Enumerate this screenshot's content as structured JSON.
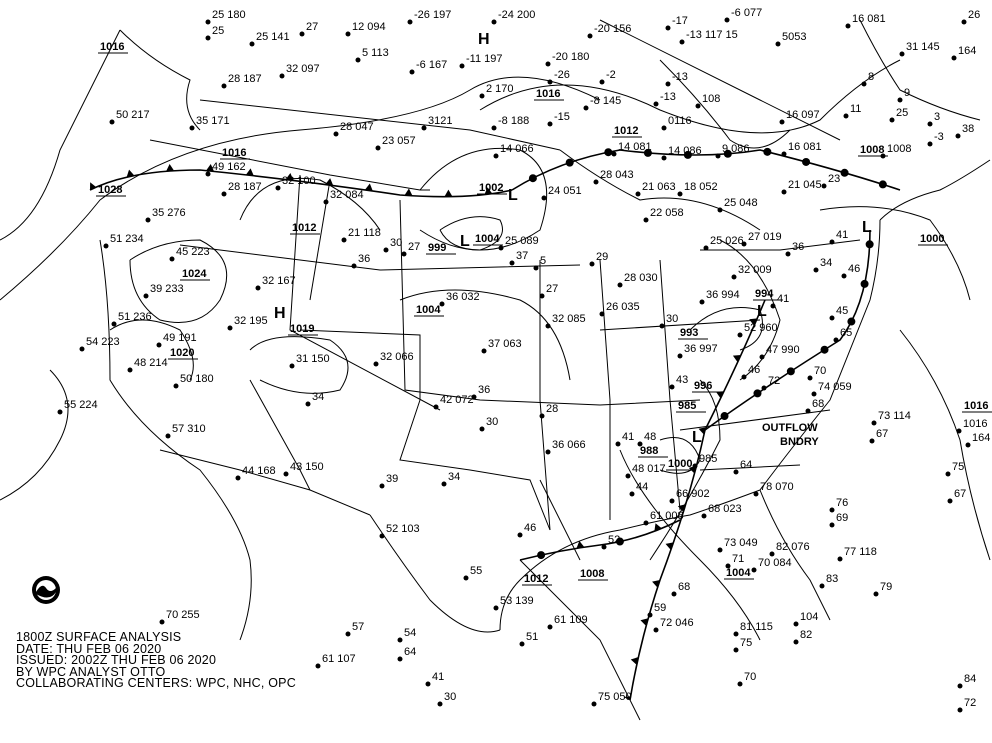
{
  "caption": {
    "line1": "1800Z SURFACE ANALYSIS",
    "line2": "DATE: THU FEB 06 2020",
    "line3": "ISSUED: 2002Z THU FEB 06 2020",
    "line4": "BY WPC ANALYST OTTO",
    "line5": "COLLABORATING CENTERS: WPC, NHC, OPC"
  },
  "logo": "NOAA",
  "pressure_centers": [
    {
      "type": "H"
    },
    {
      "type": "H"
    },
    {
      "type": "L"
    },
    {
      "type": "L"
    },
    {
      "type": "L"
    },
    {
      "type": "L"
    },
    {
      "type": "L"
    }
  ],
  "isobar_labels": [
    "1016",
    "1016",
    "1028",
    "1024",
    "1020",
    "1012",
    "1019",
    "1002",
    "999",
    "1004",
    "1004",
    "1016",
    "1012",
    "1008",
    "1000",
    "994",
    "993",
    "996",
    "985",
    "988",
    "1000",
    "1004",
    "1008",
    "1012",
    "1016"
  ],
  "annotations": [
    "OUTFLOW",
    "BNDRY"
  ],
  "stations": [
    "25 180",
    "25",
    "27",
    "12 094",
    "-26 197",
    "-24 200",
    "-20 156",
    "-17",
    "-6 077",
    "16 081",
    "26",
    "25 141",
    "32 097",
    "5 113",
    "-6 167",
    "-11 197",
    "-20 180",
    "-13 117 15",
    "5053",
    "31 145",
    "164",
    "28 187",
    "-13",
    "2 170",
    "-26",
    "-8 145",
    "108",
    "-13",
    "-2",
    "8",
    "25",
    "38",
    "50 217",
    "35 171",
    "28 047",
    "23 057",
    "3121",
    "-8 188",
    "-15",
    "0116",
    "16 097",
    "11",
    "9",
    "49 162",
    "32 100",
    "14 066",
    "14 081",
    "14 086",
    "9 086",
    "16 081",
    "1008",
    "3",
    "-3",
    "28 187",
    "32 084",
    "24 051",
    "28 043",
    "21 063",
    "18 052",
    "25 048",
    "21 045",
    "23",
    "35 276",
    "21 118",
    "27",
    "25 089",
    "22 058",
    "25 026",
    "27 019",
    "36",
    "41",
    "51 234",
    "45 223",
    "30",
    "37",
    "5",
    "29",
    "28 030",
    "32 009",
    "34",
    "46",
    "39 233",
    "32 167",
    "36 032",
    "27",
    "26 035",
    "36 994",
    "41",
    "45",
    "51 236",
    "32 195",
    "36",
    "32 085",
    "30",
    "52 960",
    "47 990",
    "65",
    "54 223",
    "49 191",
    "31 150",
    "32 066",
    "37 063",
    "36 997",
    "46",
    "74 059",
    "48 214",
    "50 180",
    "42 072",
    "36",
    "43",
    "72",
    "68",
    "70",
    "55 224",
    "57 310",
    "34",
    "30",
    "28",
    "41",
    "48",
    "73 114",
    "67",
    "1016",
    "164",
    "44 168",
    "43 150",
    "39",
    "36 066",
    "48 017",
    "985",
    "64",
    "78 070",
    "75",
    "67",
    "52 103",
    "34",
    "46",
    "44",
    "52",
    "66 902",
    "68 023",
    "76",
    "69",
    "55",
    "61 008",
    "73 049",
    "82 076",
    "77 118",
    "83",
    "79",
    "53 139",
    "61 109",
    "68",
    "59",
    "71",
    "70 084",
    "104",
    "82",
    "70 255",
    "57",
    "54",
    "64",
    "72 046",
    "81 115",
    "75",
    "61 107",
    "41",
    "51",
    "30",
    "75 050",
    "70",
    "84",
    "72"
  ],
  "colors": {
    "ink": "#000000",
    "background": "#ffffff"
  }
}
